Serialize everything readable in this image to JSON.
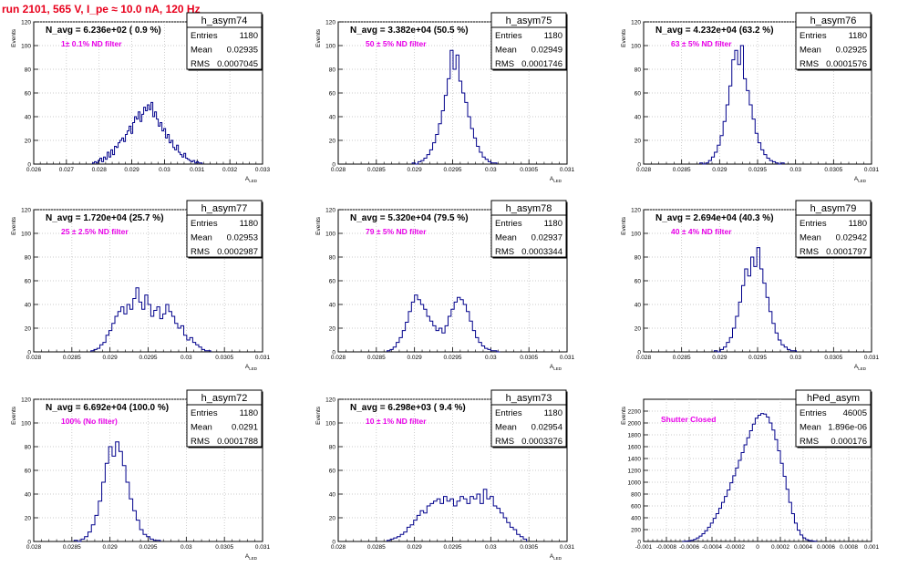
{
  "page_title": "run 2101,   565 V, I_pe ≈ 10.0 nA, 120 Hz",
  "colors": {
    "title": "#e8001c",
    "annotation": "#e800e8",
    "histogram": "#00008b"
  },
  "chart_data": [
    {
      "type": "histogram",
      "name": "h_asym74",
      "stats": {
        "entries": "1180",
        "mean": "0.02935",
        "rms": "0.0007045"
      },
      "navg_label": "N_avg = 6.236e+02 ( 0.9 %)",
      "annotation": "1± 0.1% ND filter",
      "ylabel": "Events",
      "xlabel": "A_LED",
      "xlim": [
        0.026,
        0.033
      ],
      "ylim": [
        0,
        120
      ],
      "xticks": [
        0.026,
        0.027,
        0.028,
        0.029,
        0.03,
        0.031,
        0.032,
        0.033
      ],
      "xtick_labels": [
        "0.026",
        "0.027",
        "0.028",
        "0.029",
        "0.03",
        "0.031",
        "0.032",
        "0.033"
      ],
      "yticks": [
        0,
        20,
        40,
        60,
        80,
        100,
        120
      ],
      "ytick_labels": [
        "0",
        "20",
        "40",
        "60",
        "80",
        "100",
        "120"
      ],
      "bin_edges": [
        0.0278,
        0.03115
      ],
      "counts": [
        1,
        2,
        1,
        3,
        5,
        2,
        6,
        4,
        10,
        6,
        12,
        8,
        15,
        14,
        18,
        20,
        22,
        19,
        25,
        28,
        32,
        26,
        35,
        40,
        38,
        44,
        36,
        42,
        48,
        45,
        50,
        46,
        52,
        40,
        44,
        38,
        32,
        35,
        28,
        30,
        22,
        25,
        18,
        20,
        14,
        12,
        16,
        10,
        8,
        6,
        9,
        5,
        4,
        3,
        2,
        3,
        1,
        2,
        1,
        1
      ]
    },
    {
      "type": "histogram",
      "name": "h_asym75",
      "stats": {
        "entries": "1180",
        "mean": "0.02949",
        "rms": "0.0001746"
      },
      "navg_label": "N_avg = 3.382e+04 (50.5 %)",
      "annotation": "50 ± 5% ND filter",
      "ylabel": "Events",
      "xlabel": "A_LED",
      "xlim": [
        0.028,
        0.031
      ],
      "ylim": [
        0,
        120
      ],
      "xticks": [
        0.028,
        0.0285,
        0.029,
        0.0295,
        0.03,
        0.0305,
        0.031
      ],
      "xtick_labels": [
        "0.028",
        "0.0285",
        "0.029",
        "0.0295",
        "0.03",
        "0.0305",
        "0.031"
      ],
      "yticks": [
        0,
        20,
        40,
        60,
        80,
        100,
        120
      ],
      "ytick_labels": [
        "0",
        "20",
        "40",
        "60",
        "80",
        "100",
        "120"
      ],
      "bin_edges": [
        0.02897,
        0.03008
      ],
      "counts": [
        1,
        0,
        2,
        3,
        5,
        8,
        12,
        18,
        25,
        34,
        45,
        58,
        72,
        96,
        80,
        92,
        70,
        60,
        52,
        40,
        30,
        22,
        15,
        10,
        6,
        4,
        2,
        1,
        1
      ]
    },
    {
      "type": "histogram",
      "name": "h_asym76",
      "stats": {
        "entries": "1180",
        "mean": "0.02925",
        "rms": "0.0001576"
      },
      "navg_label": "N_avg = 4.232e+04 (63.2 %)",
      "annotation": "63 ± 5% ND filter",
      "ylabel": "Events",
      "xlabel": "A_LED",
      "xlim": [
        0.028,
        0.031
      ],
      "ylim": [
        0,
        120
      ],
      "xticks": [
        0.028,
        0.0285,
        0.029,
        0.0295,
        0.03,
        0.0305,
        0.031
      ],
      "xtick_labels": [
        "0.028",
        "0.0285",
        "0.029",
        "0.0295",
        "0.03",
        "0.0305",
        "0.031"
      ],
      "yticks": [
        0,
        20,
        40,
        60,
        80,
        100,
        120
      ],
      "ytick_labels": [
        "0",
        "20",
        "40",
        "60",
        "80",
        "100",
        "120"
      ],
      "bin_edges": [
        0.02874,
        0.02985
      ],
      "counts": [
        1,
        0,
        1,
        3,
        6,
        10,
        16,
        24,
        36,
        50,
        66,
        88,
        96,
        84,
        100,
        72,
        62,
        50,
        38,
        26,
        18,
        12,
        8,
        5,
        3,
        2,
        1,
        0,
        1
      ]
    },
    {
      "type": "histogram",
      "name": "h_asym77",
      "stats": {
        "entries": "1180",
        "mean": "0.02953",
        "rms": "0.0002987"
      },
      "navg_label": "N_avg = 1.720e+04 (25.7 %)",
      "annotation": "25 ± 2.5% ND filter",
      "ylabel": "Events",
      "xlabel": "A_LED",
      "xlim": [
        0.028,
        0.031
      ],
      "ylim": [
        0,
        120
      ],
      "xticks": [
        0.028,
        0.0285,
        0.029,
        0.0295,
        0.03,
        0.0305,
        0.031
      ],
      "xtick_labels": [
        "0.028",
        "0.0285",
        "0.029",
        "0.0295",
        "0.03",
        "0.0305",
        "0.031"
      ],
      "yticks": [
        0,
        20,
        40,
        60,
        80,
        100,
        120
      ],
      "ytick_labels": [
        "0",
        "20",
        "40",
        "60",
        "80",
        "100",
        "120"
      ],
      "bin_edges": [
        0.02875,
        0.03032
      ],
      "counts": [
        1,
        2,
        3,
        6,
        8,
        14,
        18,
        24,
        30,
        34,
        38,
        32,
        40,
        36,
        45,
        54,
        42,
        36,
        48,
        40,
        30,
        35,
        38,
        28,
        32,
        40,
        34,
        30,
        24,
        20,
        22,
        14,
        10,
        12,
        8,
        6,
        4,
        2,
        1,
        1
      ]
    },
    {
      "type": "histogram",
      "name": "h_asym78",
      "stats": {
        "entries": "1180",
        "mean": "0.02937",
        "rms": "0.0003344"
      },
      "navg_label": "N_avg = 5.320e+04 (79.5 %)",
      "annotation": "79 ± 5% ND filter",
      "ylabel": "Events",
      "xlabel": "A_LED",
      "xlim": [
        0.028,
        0.031
      ],
      "ylim": [
        0,
        120
      ],
      "xticks": [
        0.028,
        0.0285,
        0.029,
        0.0295,
        0.03,
        0.0305,
        0.031
      ],
      "xtick_labels": [
        "0.028",
        "0.0285",
        "0.029",
        "0.0295",
        "0.03",
        "0.0305",
        "0.031"
      ],
      "yticks": [
        0,
        20,
        40,
        60,
        80,
        100,
        120
      ],
      "ytick_labels": [
        "0",
        "20",
        "40",
        "60",
        "80",
        "100",
        "120"
      ],
      "bin_edges": [
        0.02864,
        0.03012
      ],
      "counts": [
        1,
        2,
        4,
        8,
        12,
        18,
        25,
        34,
        42,
        48,
        44,
        40,
        36,
        30,
        26,
        22,
        18,
        20,
        16,
        22,
        30,
        36,
        42,
        46,
        44,
        40,
        34,
        26,
        18,
        12,
        8,
        5,
        3,
        2,
        1,
        1,
        0
      ]
    },
    {
      "type": "histogram",
      "name": "h_asym79",
      "stats": {
        "entries": "1180",
        "mean": "0.02942",
        "rms": "0.0001797"
      },
      "navg_label": "N_avg = 2.694e+04 (40.3 %)",
      "annotation": "40 ± 4% ND filter",
      "ylabel": "Events",
      "xlabel": "A_LED",
      "xlim": [
        0.028,
        0.031
      ],
      "ylim": [
        0,
        120
      ],
      "xticks": [
        0.028,
        0.0285,
        0.029,
        0.0295,
        0.03,
        0.0305,
        0.031
      ],
      "xtick_labels": [
        "0.028",
        "0.0285",
        "0.029",
        "0.0295",
        "0.03",
        "0.0305",
        "0.031"
      ],
      "yticks": [
        0,
        20,
        40,
        60,
        80,
        100,
        120
      ],
      "ytick_labels": [
        "0",
        "20",
        "40",
        "60",
        "80",
        "100",
        "120"
      ],
      "bin_edges": [
        0.02893,
        0.03001
      ],
      "counts": [
        1,
        0,
        2,
        4,
        8,
        12,
        20,
        30,
        42,
        56,
        70,
        64,
        80,
        72,
        88,
        70,
        58,
        46,
        34,
        24,
        16,
        10,
        6,
        4,
        2,
        1,
        1
      ]
    },
    {
      "type": "histogram",
      "name": "h_asym72",
      "stats": {
        "entries": "1180",
        "mean": "0.0291",
        "rms": "0.0001788"
      },
      "navg_label": "N_avg = 6.692e+04 (100.0 %)",
      "annotation": "100% (No filter)",
      "ylabel": "Events",
      "xlabel": "A_LED",
      "xlim": [
        0.028,
        0.031
      ],
      "ylim": [
        0,
        120
      ],
      "xticks": [
        0.028,
        0.0285,
        0.029,
        0.0295,
        0.03,
        0.0305,
        0.031
      ],
      "xtick_labels": [
        "0.028",
        "0.0285",
        "0.029",
        "0.0295",
        "0.03",
        "0.0305",
        "0.031"
      ],
      "yticks": [
        0,
        20,
        40,
        60,
        80,
        100,
        120
      ],
      "ytick_labels": [
        "0",
        "20",
        "40",
        "60",
        "80",
        "100",
        "120"
      ],
      "bin_edges": [
        0.02853,
        0.02966
      ],
      "counts": [
        1,
        0,
        2,
        4,
        8,
        14,
        22,
        34,
        50,
        66,
        80,
        72,
        84,
        76,
        64,
        50,
        36,
        26,
        18,
        10,
        6,
        4,
        2,
        1,
        1
      ]
    },
    {
      "type": "histogram",
      "name": "h_asym73",
      "stats": {
        "entries": "1180",
        "mean": "0.02954",
        "rms": "0.0003376"
      },
      "navg_label": "N_avg = 6.298e+03 ( 9.4 %)",
      "annotation": "10 ± 1% ND filter",
      "ylabel": "Events",
      "xlabel": "A_LED",
      "xlim": [
        0.028,
        0.031
      ],
      "ylim": [
        0,
        120
      ],
      "xticks": [
        0.028,
        0.0285,
        0.029,
        0.0295,
        0.03,
        0.0305,
        0.031
      ],
      "xtick_labels": [
        "0.028",
        "0.0285",
        "0.029",
        "0.0295",
        "0.03",
        "0.0305",
        "0.031"
      ],
      "yticks": [
        0,
        20,
        40,
        60,
        80,
        100,
        120
      ],
      "ytick_labels": [
        "0",
        "20",
        "40",
        "60",
        "80",
        "100",
        "120"
      ],
      "bin_edges": [
        0.02864,
        0.03047
      ],
      "counts": [
        1,
        2,
        3,
        4,
        6,
        8,
        12,
        14,
        18,
        22,
        26,
        24,
        30,
        32,
        34,
        36,
        32,
        38,
        34,
        36,
        30,
        34,
        38,
        36,
        32,
        38,
        36,
        40,
        32,
        44,
        36,
        38,
        30,
        28,
        24,
        20,
        16,
        12,
        10,
        6,
        4,
        2
      ]
    },
    {
      "type": "histogram",
      "name": "hPed_asym",
      "stats": {
        "entries": "46005",
        "mean": "1.896e-06",
        "rms": "0.000176"
      },
      "annotation": "Shutter Closed",
      "ylabel": "Events",
      "xlim": [
        -0.001,
        0.001
      ],
      "ylim": [
        0,
        2400
      ],
      "xticks": [
        -0.001,
        -0.0008,
        -0.0006,
        -0.0004,
        -0.0002,
        0,
        0.0002,
        0.0004,
        0.0006,
        0.0008,
        0.001
      ],
      "xtick_labels": [
        "-0.001",
        "-0.0008",
        "-0.0006",
        "-0.0004",
        "-0.0002",
        "0",
        "0.0002",
        "0.0004",
        "0.0006",
        "0.0008",
        "0.001"
      ],
      "yticks": [
        0,
        200,
        400,
        600,
        800,
        1000,
        1200,
        1400,
        1600,
        1800,
        2000,
        2200
      ],
      "ytick_labels": [
        "0",
        "200",
        "400",
        "600",
        "800",
        "1000",
        "1200",
        "1400",
        "1600",
        "1800",
        "2000",
        "2200"
      ],
      "bin_edges": [
        -0.00066,
        0.00052
      ],
      "counts": [
        2,
        5,
        10,
        20,
        35,
        60,
        90,
        130,
        180,
        240,
        310,
        390,
        470,
        560,
        660,
        760,
        870,
        990,
        1110,
        1240,
        1370,
        1500,
        1630,
        1750,
        1870,
        1980,
        2080,
        2130,
        2160,
        2150,
        2100,
        2000,
        1880,
        1720,
        1530,
        1320,
        1100,
        880,
        660,
        470,
        310,
        190,
        110,
        60,
        30,
        15,
        8,
        4
      ]
    }
  ]
}
